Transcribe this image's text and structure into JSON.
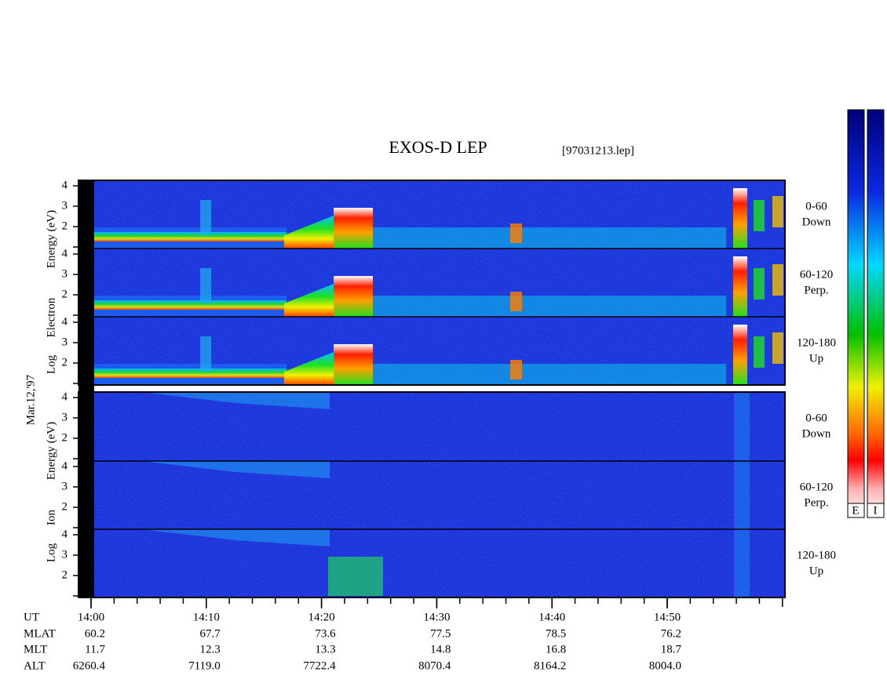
{
  "title": "EXOS-D LEP",
  "file": "[97031213.lep]",
  "date": "Mar.12,'97",
  "electron_label": [
    "Log",
    "Electron",
    "Energy (eV)"
  ],
  "ion_label": [
    "Log",
    "Ion",
    "Energy (eV)"
  ],
  "ylim": [
    1,
    4
  ],
  "yticks": [
    2,
    3,
    4
  ],
  "pitch_angles": [
    {
      "range": "0-60",
      "direction": "Down"
    },
    {
      "range": "60-120",
      "direction": "Perp."
    },
    {
      "range": "120-180",
      "direction": "Up"
    }
  ],
  "time_ticks": [
    "14:00",
    "14:10",
    "14:20",
    "14:30",
    "14:40",
    "14:50"
  ],
  "ephemeris": [
    {
      "label": "UT"
    },
    {
      "label": "MLAT",
      "values": [
        "60.2",
        "67.7",
        "73.6",
        "77.5",
        "78.5",
        "76.2"
      ]
    },
    {
      "label": "MLT",
      "values": [
        "11.7",
        "12.3",
        "13.3",
        "14.8",
        "16.8",
        "18.7"
      ]
    },
    {
      "label": "ALT",
      "values": [
        "6260.4",
        "7119.0",
        "7722.4",
        "8070.4",
        "8164.2",
        "8004.0"
      ]
    }
  ],
  "colorbar_labels": [
    "E",
    "I"
  ]
}
